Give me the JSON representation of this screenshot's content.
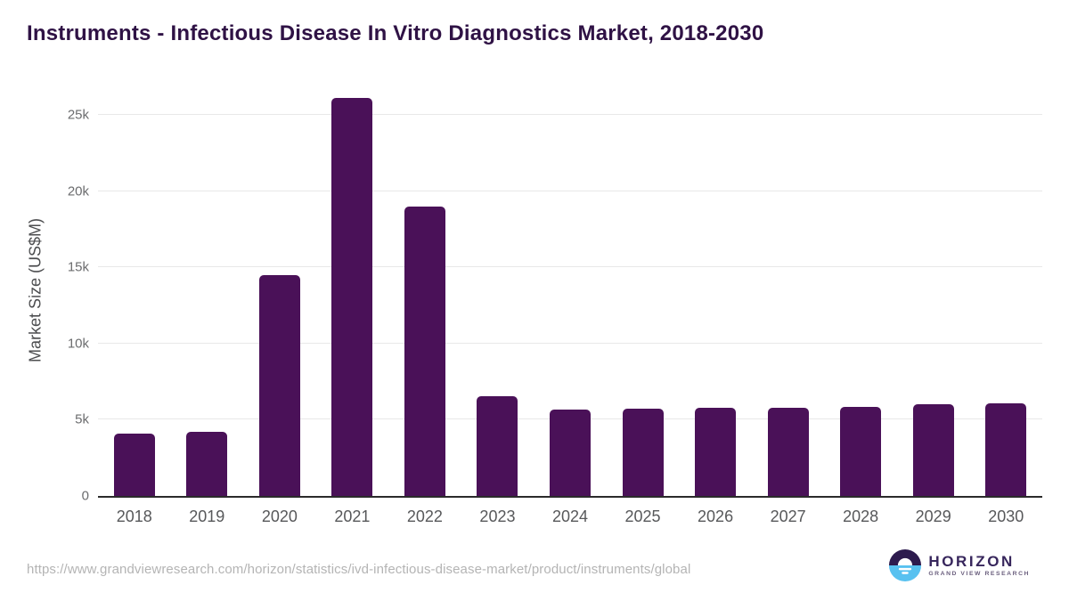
{
  "header": {
    "title": "Instruments - Infectious Disease In Vitro Diagnostics Market, 2018-2030"
  },
  "chart_data": {
    "type": "bar",
    "title": "Instruments - Infectious Disease In Vitro Diagnostics Market, 2018-2030",
    "categories": [
      "2018",
      "2019",
      "2020",
      "2021",
      "2022",
      "2023",
      "2024",
      "2025",
      "2026",
      "2027",
      "2028",
      "2029",
      "2030"
    ],
    "values": [
      4100,
      4200,
      14500,
      26100,
      19000,
      6550,
      5670,
      5720,
      5780,
      5800,
      5860,
      6000,
      6080
    ],
    "xlabel": "",
    "ylabel": "Market Size (US$M)",
    "ylim": [
      0,
      27000
    ],
    "yticks": [
      {
        "label": "0",
        "value": 0
      },
      {
        "label": "5k",
        "value": 5000
      },
      {
        "label": "10k",
        "value": 10000
      },
      {
        "label": "15k",
        "value": 15000
      },
      {
        "label": "20k",
        "value": 20000
      },
      {
        "label": "25k",
        "value": 25000
      }
    ],
    "grid": "horizontal",
    "legend": "none",
    "bar_color": "#4a1158"
  },
  "footer": {
    "source_url": "https://www.grandviewresearch.com/horizon/statistics/ivd-infectious-disease-market/product/instruments/global",
    "logo": {
      "name": "HORIZON",
      "tagline": "GRAND VIEW RESEARCH"
    }
  },
  "colors": {
    "bar": "#4a1158",
    "title_text": "#2f1245",
    "axis_line": "#2b2b2b",
    "gridline": "#e8e8e8",
    "x_tick_text": "#57585a",
    "y_tick_text": "#6b6c6e",
    "url_text": "#b4b4b4",
    "logo_purple": "#2d1b4e",
    "logo_blue": "#58c1f0",
    "logo_wordmark": "#37265c",
    "logo_tagline": "#6b5f7e"
  }
}
